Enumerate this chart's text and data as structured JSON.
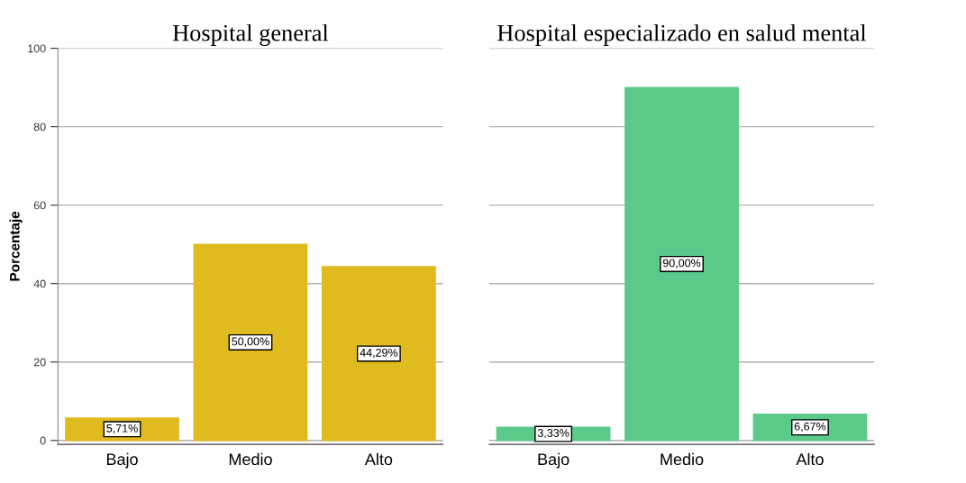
{
  "chart_data": [
    {
      "type": "bar",
      "title": "Hospital general",
      "ylabel": "Porcentaje",
      "categories": [
        "Bajo",
        "Medio",
        "Alto"
      ],
      "values": [
        5.71,
        50,
        44.29
      ],
      "color": "#dfbb1f",
      "value_labels": [
        "5,71%",
        "50,00%",
        "44,29%"
      ],
      "ylim": [
        -1,
        100
      ],
      "yticks": [
        0,
        20,
        40,
        60,
        80,
        100
      ],
      "grid": "y"
    },
    {
      "type": "bar",
      "title": "Hospital especializado en salud mental",
      "categories": [
        "Bajo",
        "Medio",
        "Alto"
      ],
      "values": [
        3.33,
        90,
        6.67
      ],
      "color": "#5ac98a",
      "value_labels": [
        "3,33%",
        "90,00%",
        "6,67%"
      ],
      "ylim": [
        -1,
        100
      ],
      "yticks": [
        0,
        20,
        40,
        60,
        80,
        100
      ],
      "grid": "y",
      "tick_labels": "x"
    }
  ]
}
